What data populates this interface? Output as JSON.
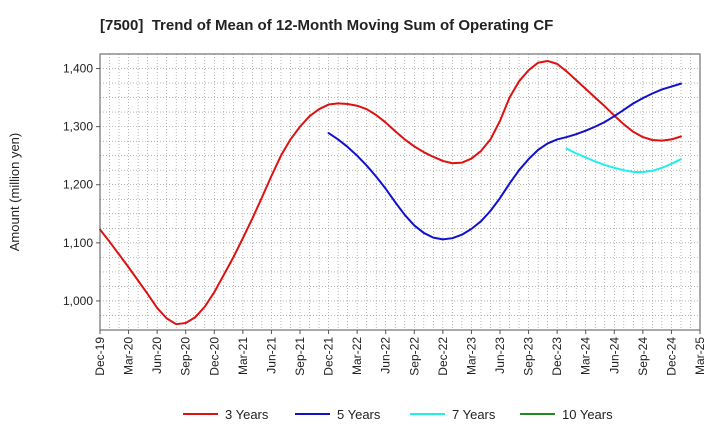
{
  "chart_data": {
    "type": "line",
    "title": "[7500]  Trend of Mean of 12-Month Moving Sum of Operating CF",
    "xlabel": "",
    "ylabel": "Amount (million yen)",
    "ylim": [
      950,
      1425
    ],
    "yticks": [
      1000,
      1100,
      1200,
      1300,
      1400
    ],
    "ytick_labels": [
      "1,000",
      "1,100",
      "1,200",
      "1,300",
      "1,400"
    ],
    "grid": true,
    "legend_position": "bottom",
    "x_start": "Dec-19",
    "x_months": 63,
    "xtick_labels": [
      "Dec-19",
      "Mar-20",
      "Jun-20",
      "Sep-20",
      "Dec-20",
      "Mar-21",
      "Jun-21",
      "Sep-21",
      "Dec-21",
      "Mar-22",
      "Jun-22",
      "Sep-22",
      "Dec-22",
      "Mar-23",
      "Jun-23",
      "Sep-23",
      "Dec-23",
      "Mar-24",
      "Jun-24",
      "Sep-24",
      "Dec-24",
      "Mar-25"
    ],
    "series": [
      {
        "name": "3 Years",
        "color": "#dd1111",
        "start_index": 0,
        "values": [
          1123,
          1102,
          1080,
          1058,
          1035,
          1012,
          988,
          970,
          960,
          962,
          972,
          990,
          1015,
          1045,
          1075,
          1108,
          1142,
          1178,
          1215,
          1250,
          1278,
          1300,
          1318,
          1330,
          1338,
          1340,
          1339,
          1336,
          1330,
          1320,
          1307,
          1292,
          1278,
          1266,
          1256,
          1248,
          1241,
          1237,
          1238,
          1245,
          1258,
          1278,
          1310,
          1350,
          1378,
          1397,
          1410,
          1413,
          1408,
          1395,
          1380,
          1365,
          1350,
          1335,
          1319,
          1304,
          1291,
          1282,
          1277,
          1276,
          1278,
          1283
        ]
      },
      {
        "name": "5 Years",
        "color": "#1111cc",
        "start_index": 24,
        "values": [
          1289,
          1278,
          1265,
          1250,
          1233,
          1214,
          1193,
          1170,
          1148,
          1130,
          1117,
          1109,
          1106,
          1108,
          1114,
          1124,
          1137,
          1155,
          1177,
          1202,
          1225,
          1244,
          1260,
          1271,
          1278,
          1282,
          1287,
          1293,
          1300,
          1308,
          1318,
          1329,
          1340,
          1349,
          1357,
          1364,
          1369,
          1374
        ]
      },
      {
        "name": "7 Years",
        "color": "#22eeee",
        "start_index": 49,
        "values": [
          1262,
          1254,
          1247,
          1240,
          1234,
          1229,
          1225,
          1222,
          1222,
          1224,
          1229,
          1236,
          1244
        ]
      },
      {
        "name": "10 Years",
        "color": "#228822",
        "start_index": 0,
        "values": []
      }
    ]
  }
}
